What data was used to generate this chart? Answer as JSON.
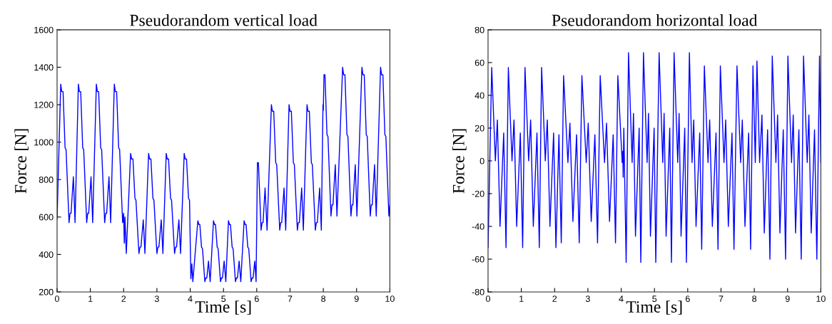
{
  "chart_data": [
    {
      "type": "line",
      "title": "Pseudorandom vertical load",
      "xlabel": "Time [s]",
      "ylabel": "Force [N]",
      "xlim": [
        0,
        10
      ],
      "xticks": [
        0,
        1,
        2,
        3,
        4,
        5,
        6,
        7,
        8,
        9,
        10
      ],
      "ylim": [
        200,
        1600
      ],
      "yticks": [
        200,
        400,
        600,
        800,
        1000,
        1200,
        1400,
        1600
      ],
      "series": [
        {
          "color": "#0000ff",
          "x": [
            0,
            0.11,
            0.14,
            0.18,
            0.24,
            0.27,
            0.36,
            0.39,
            0.42,
            0.49,
            0.54,
            0.64,
            0.67,
            0.71,
            0.77,
            0.8,
            0.89,
            0.92,
            0.95,
            1.02,
            1.07,
            1.18,
            1.21,
            1.25,
            1.31,
            1.34,
            1.43,
            1.46,
            1.49,
            1.56,
            1.61,
            1.72,
            1.75,
            1.79,
            1.85,
            1.88,
            1.97,
            2.0,
            2.02,
            2.04,
            2.08,
            2.21,
            2.24,
            2.28,
            2.34,
            2.37,
            2.46,
            2.49,
            2.52,
            2.59,
            2.64,
            2.75,
            2.78,
            2.82,
            2.88,
            2.91,
            3.0,
            3.03,
            3.06,
            3.13,
            3.18,
            3.28,
            3.31,
            3.35,
            3.41,
            3.44,
            3.53,
            3.56,
            3.59,
            3.66,
            3.71,
            3.82,
            3.85,
            3.89,
            3.95,
            3.98,
            4.02,
            4.05,
            4.08,
            4.23,
            4.26,
            4.29,
            4.34,
            4.37,
            4.44,
            4.47,
            4.5,
            4.55,
            4.6,
            4.7,
            4.73,
            4.76,
            4.81,
            4.84,
            4.91,
            4.94,
            4.97,
            5.02,
            5.07,
            5.15,
            5.18,
            5.21,
            5.26,
            5.29,
            5.36,
            5.39,
            5.42,
            5.47,
            5.52,
            5.62,
            5.65,
            5.68,
            5.73,
            5.76,
            5.83,
            5.86,
            5.89,
            5.94,
            5.98,
            6.02,
            6.05,
            6.13,
            6.16,
            6.19,
            6.25,
            6.31,
            6.44,
            6.47,
            6.51,
            6.57,
            6.6,
            6.69,
            6.72,
            6.75,
            6.82,
            6.87,
            6.97,
            7.0,
            7.04,
            7.1,
            7.13,
            7.22,
            7.25,
            7.28,
            7.35,
            7.4,
            7.51,
            7.54,
            7.58,
            7.64,
            7.67,
            7.76,
            7.79,
            7.82,
            7.89,
            7.94,
            7.99,
            8.0,
            8.02,
            8.05,
            8.11,
            8.14,
            8.23,
            8.26,
            8.29,
            8.36,
            8.41,
            8.58,
            8.61,
            8.65,
            8.71,
            8.74,
            8.83,
            8.86,
            8.89,
            8.96,
            9.01,
            9.16,
            9.19,
            9.23,
            9.29,
            9.32,
            9.41,
            9.44,
            9.47,
            9.54,
            9.59,
            9.72,
            9.75,
            9.79,
            9.85,
            9.88,
            9.97,
            10.0
          ],
          "values": [
            590,
            1310,
            1270,
            1270,
            970,
            960,
            570,
            620,
            620,
            815,
            570,
            1310,
            1270,
            1270,
            970,
            960,
            570,
            620,
            620,
            815,
            570,
            1310,
            1270,
            1270,
            970,
            960,
            570,
            620,
            620,
            815,
            570,
            1310,
            1270,
            1270,
            970,
            960,
            570,
            620,
            460,
            600,
            405,
            940,
            910,
            910,
            700,
            690,
            405,
            440,
            440,
            585,
            405,
            940,
            910,
            910,
            700,
            690,
            405,
            440,
            440,
            585,
            405,
            940,
            910,
            910,
            700,
            690,
            405,
            440,
            440,
            585,
            405,
            940,
            910,
            910,
            700,
            690,
            270,
            350,
            255,
            580,
            560,
            560,
            440,
            430,
            255,
            275,
            275,
            365,
            255,
            580,
            560,
            560,
            440,
            430,
            255,
            275,
            275,
            365,
            255,
            580,
            560,
            560,
            440,
            430,
            255,
            275,
            275,
            365,
            255,
            580,
            560,
            560,
            440,
            430,
            255,
            275,
            275,
            365,
            255,
            890,
            890,
            530,
            570,
            570,
            755,
            530,
            1200,
            1165,
            1165,
            890,
            880,
            530,
            570,
            570,
            755,
            530,
            1200,
            1165,
            1165,
            890,
            880,
            530,
            570,
            570,
            755,
            530,
            1200,
            1165,
            1165,
            890,
            880,
            530,
            570,
            570,
            755,
            530,
            1200,
            1170,
            1360,
            1360,
            1040,
            1030,
            605,
            665,
            665,
            880,
            605,
            1400,
            1360,
            1360,
            1040,
            1030,
            605,
            665,
            665,
            880,
            605,
            1400,
            1360,
            1360,
            1040,
            1030,
            605,
            665,
            665,
            880,
            605,
            1400,
            1360,
            1360,
            1040,
            1030,
            605,
            665
          ]
        }
      ]
    },
    {
      "type": "line",
      "title": "Pseudorandom horizontal load",
      "xlabel": "Time [s]",
      "ylabel": "Force [N]",
      "xlim": [
        0,
        10
      ],
      "xticks": [
        0,
        1,
        2,
        3,
        4,
        5,
        6,
        7,
        8,
        9,
        10
      ],
      "ylim": [
        -80,
        80
      ],
      "yticks": [
        -80,
        -60,
        -40,
        -20,
        0,
        20,
        40,
        60,
        80
      ],
      "series": [
        {
          "color": "#0000ff",
          "x": [
            0,
            0.11,
            0.22,
            0.28,
            0.36,
            0.47,
            0.54,
            0.61,
            0.72,
            0.78,
            0.86,
            0.97,
            1.04,
            1.11,
            1.22,
            1.28,
            1.36,
            1.47,
            1.54,
            1.61,
            1.72,
            1.78,
            1.86,
            1.97,
            2.04,
            2.13,
            2.2,
            2.27,
            2.4,
            2.46,
            2.55,
            2.66,
            2.74,
            2.82,
            2.95,
            3.01,
            3.1,
            3.21,
            3.29,
            3.37,
            3.5,
            3.56,
            3.65,
            3.76,
            3.83,
            3.9,
            4.03,
            4.05,
            4.06,
            4.08,
            4.15,
            4.22,
            4.33,
            4.37,
            4.43,
            4.54,
            4.59,
            4.67,
            4.78,
            4.82,
            4.88,
            4.99,
            5.04,
            5.14,
            5.25,
            5.29,
            5.35,
            5.46,
            5.51,
            5.59,
            5.7,
            5.74,
            5.8,
            5.91,
            5.96,
            6.05,
            6.13,
            6.18,
            6.25,
            6.36,
            6.42,
            6.5,
            6.61,
            6.66,
            6.74,
            6.85,
            6.91,
            6.98,
            7.09,
            7.14,
            7.22,
            7.33,
            7.39,
            7.48,
            7.59,
            7.64,
            7.72,
            7.83,
            7.89,
            7.96,
            8.03,
            8.08,
            8.16,
            8.23,
            8.3,
            8.4,
            8.47,
            8.54,
            8.65,
            8.7,
            8.77,
            8.87,
            8.94,
            9.01,
            9.12,
            9.17,
            9.24,
            9.34,
            9.41,
            9.48,
            9.59,
            9.64,
            9.71,
            9.81,
            9.88,
            9.96,
            10.0
          ],
          "values": [
            -53,
            57,
            0,
            25,
            -40,
            17,
            -53,
            57,
            0,
            25,
            -40,
            17,
            -53,
            57,
            0,
            25,
            -40,
            17,
            -53,
            57,
            0,
            25,
            -40,
            17,
            -53,
            16,
            -50,
            52,
            -1,
            23,
            -37,
            16,
            -50,
            52,
            -1,
            23,
            -37,
            16,
            -50,
            52,
            -1,
            23,
            -37,
            16,
            -50,
            52,
            -1,
            6,
            -10,
            20,
            -62,
            66,
            -1,
            29,
            -46,
            20,
            -62,
            66,
            -1,
            29,
            -46,
            20,
            -62,
            66,
            -1,
            29,
            -46,
            20,
            -62,
            66,
            -1,
            29,
            -46,
            20,
            -62,
            66,
            -1,
            25,
            -40,
            17,
            -54,
            58,
            -1,
            25,
            -40,
            17,
            -54,
            58,
            -1,
            25,
            -40,
            17,
            -54,
            58,
            -1,
            25,
            -40,
            17,
            -54,
            58,
            -1,
            61,
            -1,
            28,
            -44,
            19,
            -60,
            64,
            -1,
            28,
            -44,
            19,
            -60,
            64,
            -1,
            28,
            -44,
            19,
            -60,
            64,
            -1,
            28,
            -44,
            19,
            -60,
            64,
            -1
          ]
        }
      ]
    }
  ]
}
